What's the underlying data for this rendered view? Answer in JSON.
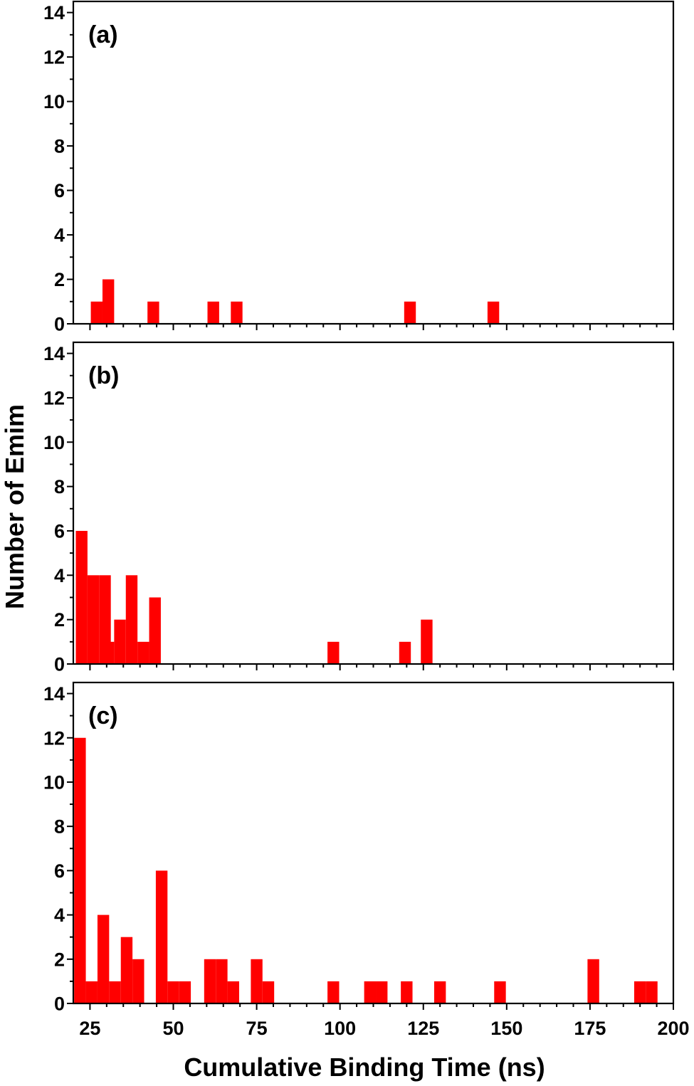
{
  "chart_data": {
    "type": "bar",
    "xlabel": "Cumulative Binding Time (ns)",
    "ylabel": "Number of Emim",
    "xlim": [
      20,
      200
    ],
    "ylim": [
      0,
      14.5
    ],
    "bin_width": 3.5,
    "bar_color": "#ff0000",
    "x_ticks": [
      "25",
      "50",
      "75",
      "100",
      "125",
      "150",
      "175",
      "200"
    ],
    "y_ticks": [
      "0",
      "2",
      "4",
      "6",
      "8",
      "10",
      "12",
      "14"
    ],
    "panels": [
      {
        "label": "(a)",
        "bins": [
          {
            "x": 27.0,
            "count": 1
          },
          {
            "x": 30.5,
            "count": 2
          },
          {
            "x": 44.0,
            "count": 1
          },
          {
            "x": 62.0,
            "count": 1
          },
          {
            "x": 69.0,
            "count": 1
          },
          {
            "x": 121.0,
            "count": 1
          },
          {
            "x": 146.0,
            "count": 1
          }
        ]
      },
      {
        "label": "(b)",
        "bins": [
          {
            "x": 22.5,
            "count": 6
          },
          {
            "x": 26.0,
            "count": 4
          },
          {
            "x": 29.5,
            "count": 4
          },
          {
            "x": 30.5,
            "count": 1
          },
          {
            "x": 34.0,
            "count": 2
          },
          {
            "x": 37.5,
            "count": 4
          },
          {
            "x": 41.0,
            "count": 1
          },
          {
            "x": 44.5,
            "count": 3
          },
          {
            "x": 98.0,
            "count": 1
          },
          {
            "x": 119.5,
            "count": 1
          },
          {
            "x": 126.0,
            "count": 2
          }
        ]
      },
      {
        "label": "(c)",
        "bins": [
          {
            "x": 22.0,
            "count": 12
          },
          {
            "x": 25.5,
            "count": 1
          },
          {
            "x": 29.0,
            "count": 4
          },
          {
            "x": 32.5,
            "count": 1
          },
          {
            "x": 36.0,
            "count": 3
          },
          {
            "x": 39.5,
            "count": 2
          },
          {
            "x": 46.5,
            "count": 6
          },
          {
            "x": 50.0,
            "count": 1
          },
          {
            "x": 53.5,
            "count": 1
          },
          {
            "x": 61.0,
            "count": 2
          },
          {
            "x": 64.5,
            "count": 2
          },
          {
            "x": 68.0,
            "count": 1
          },
          {
            "x": 75.0,
            "count": 2
          },
          {
            "x": 78.5,
            "count": 1
          },
          {
            "x": 98.0,
            "count": 1
          },
          {
            "x": 109.0,
            "count": 1
          },
          {
            "x": 112.5,
            "count": 1
          },
          {
            "x": 120.0,
            "count": 1
          },
          {
            "x": 130.0,
            "count": 1
          },
          {
            "x": 148.0,
            "count": 1
          },
          {
            "x": 176.0,
            "count": 2
          },
          {
            "x": 190.0,
            "count": 1
          },
          {
            "x": 193.5,
            "count": 1
          }
        ]
      }
    ]
  }
}
